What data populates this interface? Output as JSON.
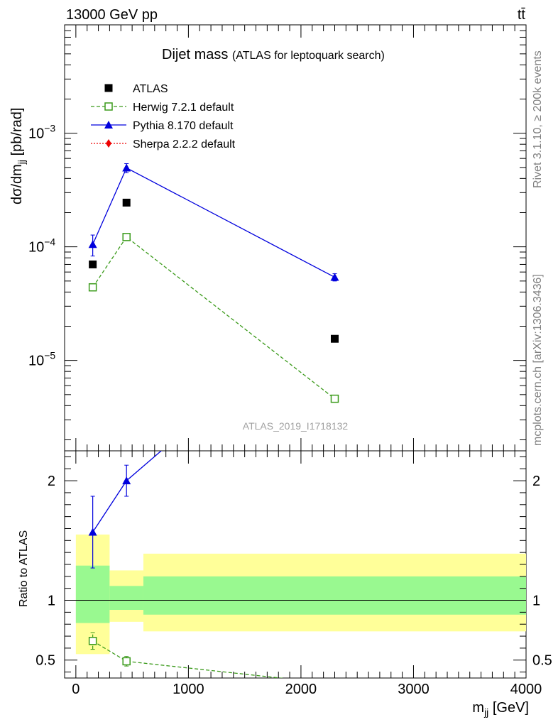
{
  "header": {
    "left": "13000 GeV pp",
    "right": "tt̄"
  },
  "side_labels": {
    "top": "Rivet 3.1.10, ≥ 200k events",
    "bottom": "mcplots.cern.ch [arXiv:1306.3436]"
  },
  "watermark": "ATLAS_2019_I1718132",
  "chart_data": [
    {
      "type": "line",
      "title": "Dijet mass",
      "subtitle": "(ATLAS for leptoquark search)",
      "ylabel": "dσ/dm_jj [pb/rad]",
      "yscale": "log",
      "ylim": [
        1.6e-06,
        0.009
      ],
      "xlim": [
        -100,
        4000
      ],
      "yticks": [
        {
          "value": 0.001,
          "label": "10",
          "exp": "−3"
        },
        {
          "value": 0.0001,
          "label": "10",
          "exp": "−4"
        },
        {
          "value": 1e-05,
          "label": "10",
          "exp": "−5"
        }
      ],
      "legend_position": "top-left",
      "series": [
        {
          "name": "ATLAS",
          "color": "#000000",
          "marker": "square",
          "x": [
            150,
            450,
            2300
          ],
          "y": [
            7e-05,
            0.000245,
            1.55e-05
          ]
        },
        {
          "name": "Herwig 7.2.1 default",
          "color": "#3a9a1a",
          "marker": "open-square",
          "line": "dashed",
          "x": [
            150,
            450,
            2300
          ],
          "y": [
            4.4e-05,
            0.000122,
            4.6e-06
          ],
          "err": [
            2e-06,
            6e-06,
            3e-07
          ]
        },
        {
          "name": "Pythia 8.170 default",
          "color": "#0000dd",
          "marker": "triangle",
          "line": "solid",
          "x": [
            150,
            450,
            2300
          ],
          "y": [
            0.000105,
            0.000495,
            5.4e-05
          ],
          "err": [
            2.2e-05,
            4.5e-05,
            4e-06
          ]
        },
        {
          "name": "Sherpa 2.2.2 default",
          "color": "#ee0000",
          "marker": "diamond",
          "line": "dotted",
          "x": [],
          "y": []
        }
      ]
    },
    {
      "type": "line",
      "ylabel": "Ratio to ATLAS",
      "xlabel": "m_jj [GeV]",
      "xlim": [
        -100,
        4000
      ],
      "ylim": [
        0.35,
        2.25
      ],
      "xticks": [
        0,
        1000,
        2000,
        3000,
        4000
      ],
      "yticks": [
        0.5,
        1,
        2
      ],
      "bands": [
        {
          "x0": 0,
          "x1": 300,
          "stat": [
            0.81,
            1.29
          ],
          "total": [
            0.55,
            1.55
          ]
        },
        {
          "x0": 300,
          "x1": 600,
          "stat": [
            0.92,
            1.12
          ],
          "total": [
            0.82,
            1.25
          ]
        },
        {
          "x0": 600,
          "x1": 4000,
          "stat": [
            0.88,
            1.2
          ],
          "total": [
            0.74,
            1.39
          ]
        }
      ],
      "band_colors": {
        "stat": "#99f990",
        "total": "#ffff99"
      },
      "series": [
        {
          "name": "Herwig 7.2.1 default",
          "x": [
            150,
            450,
            2300
          ],
          "y": [
            0.66,
            0.49,
            0.3
          ],
          "err": [
            0.07,
            0.04,
            0.02
          ]
        },
        {
          "name": "Pythia 8.170 default",
          "x": [
            150,
            450,
            2300
          ],
          "y": [
            1.57,
            2.0,
            3.5
          ],
          "err": [
            0.3,
            0.13,
            0.2
          ]
        }
      ]
    }
  ]
}
